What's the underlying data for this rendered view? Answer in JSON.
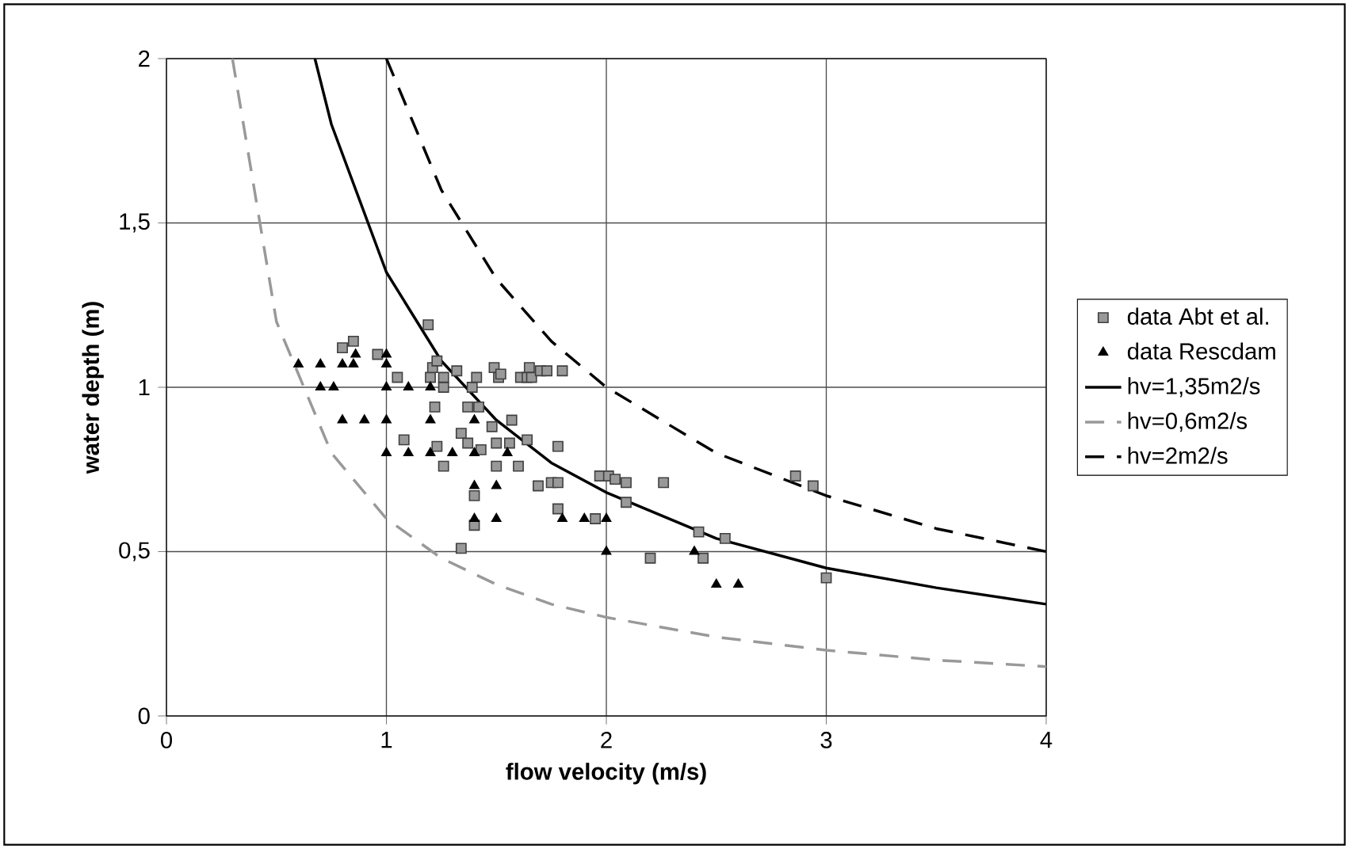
{
  "chart_data": {
    "type": "scatter",
    "xlabel": "flow velocity (m/s)",
    "ylabel": "water depth (m)",
    "xlim": [
      0,
      4
    ],
    "ylim": [
      0,
      2
    ],
    "xticks": [
      0,
      1,
      2,
      3,
      4
    ],
    "yticks": [
      0,
      {
        "value": 0.5,
        "label": "0,5"
      },
      1,
      {
        "value": 1.5,
        "label": "1,5"
      },
      2
    ],
    "grid": true,
    "legend": "right",
    "series": [
      {
        "name": "data Abt et al.",
        "marker": "square",
        "color": "#999999",
        "x": [
          0.8,
          0.85,
          0.96,
          1.05,
          1.08,
          1.19,
          1.2,
          1.21,
          1.22,
          1.23,
          1.23,
          1.26,
          1.26,
          1.26,
          1.32,
          1.34,
          1.34,
          1.37,
          1.37,
          1.39,
          1.4,
          1.4,
          1.41,
          1.42,
          1.43,
          1.48,
          1.49,
          1.5,
          1.5,
          1.51,
          1.52,
          1.56,
          1.57,
          1.6,
          1.61,
          1.64,
          1.64,
          1.65,
          1.66,
          1.69,
          1.7,
          1.73,
          1.75,
          1.78,
          1.78,
          1.78,
          1.8,
          1.95,
          1.97,
          2.01,
          2.04,
          2.09,
          2.09,
          2.2,
          2.26,
          2.42,
          2.44,
          2.54,
          2.86,
          2.94,
          3.0
        ],
        "values": [
          1.12,
          1.14,
          1.1,
          1.03,
          0.84,
          1.19,
          1.03,
          1.06,
          0.94,
          1.08,
          0.82,
          1.0,
          0.76,
          1.03,
          1.05,
          0.86,
          0.51,
          0.94,
          0.83,
          1.0,
          0.67,
          0.58,
          1.03,
          0.94,
          0.81,
          0.88,
          1.06,
          0.76,
          0.83,
          1.03,
          1.04,
          0.83,
          0.9,
          0.76,
          1.03,
          0.84,
          1.03,
          1.06,
          1.03,
          0.7,
          1.05,
          1.05,
          0.71,
          0.82,
          0.63,
          0.71,
          1.05,
          0.6,
          0.73,
          0.73,
          0.72,
          0.71,
          0.65,
          0.48,
          0.71,
          0.56,
          0.48,
          0.54,
          0.73,
          0.7,
          0.42
        ]
      },
      {
        "name": "data Rescdam",
        "marker": "triangle",
        "color": "#000000",
        "x": [
          0.6,
          0.7,
          0.7,
          0.76,
          0.8,
          0.8,
          0.85,
          0.86,
          0.9,
          1.0,
          1.0,
          1.0,
          1.0,
          1.0,
          1.1,
          1.1,
          1.2,
          1.2,
          1.2,
          1.3,
          1.4,
          1.4,
          1.4,
          1.4,
          1.5,
          1.5,
          1.55,
          1.8,
          1.9,
          2.0,
          2.0,
          2.4,
          2.5,
          2.6
        ],
        "values": [
          1.07,
          1.07,
          1.0,
          1.0,
          0.9,
          1.07,
          1.07,
          1.1,
          0.9,
          1.1,
          1.07,
          1.0,
          0.9,
          0.8,
          1.0,
          0.8,
          1.0,
          0.9,
          0.8,
          0.8,
          0.9,
          0.8,
          0.7,
          0.6,
          0.7,
          0.6,
          0.8,
          0.6,
          0.6,
          0.6,
          0.5,
          0.5,
          0.4,
          0.4
        ]
      },
      {
        "name": "hv=1,35m2/s",
        "type": "line",
        "marker": "none",
        "line_style": "solid",
        "color": "#000000",
        "x": [
          0.675,
          0.75,
          1,
          1.25,
          1.5,
          1.75,
          2,
          2.5,
          3,
          3.5,
          4
        ],
        "values": [
          2,
          1.8,
          1.35,
          1.08,
          0.9,
          0.77,
          0.68,
          0.54,
          0.45,
          0.39,
          0.34
        ]
      },
      {
        "name": "hv=0,6m2/s",
        "type": "line",
        "marker": "none",
        "line_style": "dashed",
        "color": "#999999",
        "x": [
          0.3,
          0.5,
          0.75,
          1,
          1.25,
          1.5,
          1.75,
          2,
          2.5,
          3,
          3.5,
          4
        ],
        "values": [
          2,
          1.2,
          0.8,
          0.6,
          0.48,
          0.4,
          0.34,
          0.3,
          0.24,
          0.2,
          0.17,
          0.15
        ]
      },
      {
        "name": "hv=2m2/s",
        "type": "line",
        "marker": "none",
        "line_style": "dashed",
        "color": "#000000",
        "x": [
          1,
          1.25,
          1.5,
          1.75,
          2,
          2.5,
          3,
          3.5,
          4
        ],
        "values": [
          2,
          1.6,
          1.33,
          1.14,
          1,
          0.8,
          0.67,
          0.57,
          0.5
        ]
      }
    ]
  }
}
